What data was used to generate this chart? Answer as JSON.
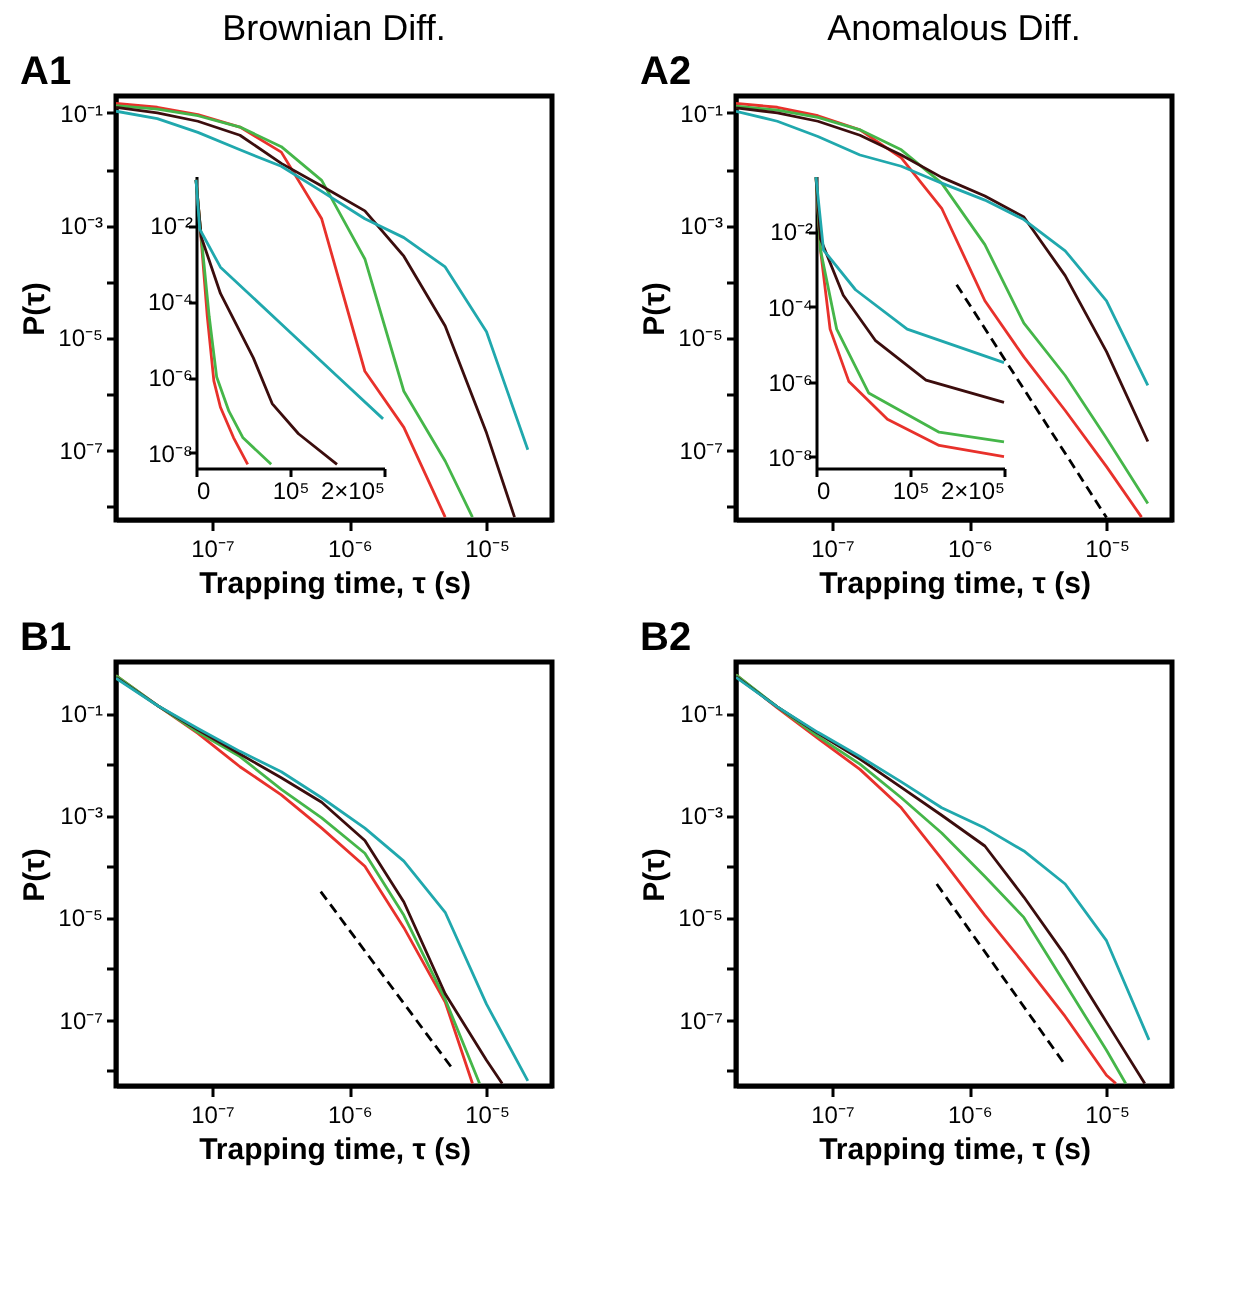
{
  "chart_data": [
    {
      "type": "line",
      "title": "Brownian Diff.",
      "annotations": [
        "A1"
      ],
      "xlabel": "Trapping time, τ (s)",
      "ylabel": "P(τ)",
      "log": "xy",
      "grid": false,
      "legend": false,
      "marker": "none",
      "line_style": "solid",
      "xlim": [
        2e-08,
        3e-05
      ],
      "ylim": [
        5.6e-09,
        0.2
      ],
      "xticks": [
        {
          "value": 1e-07,
          "label": "10⁻⁷"
        },
        {
          "value": 1e-06,
          "label": "10⁻⁶"
        },
        {
          "value": 1e-05,
          "label": "10⁻⁵"
        }
      ],
      "yticks": [
        {
          "value": 0.1,
          "label": "10⁻¹"
        },
        {
          "value": 0.01,
          "label": null
        },
        {
          "value": 0.001,
          "label": "10⁻³"
        },
        {
          "value": 0.0001,
          "label": null
        },
        {
          "value": 1e-05,
          "label": "10⁻⁵"
        },
        {
          "value": 1e-06,
          "label": null
        },
        {
          "value": 1e-07,
          "label": "10⁻⁷"
        },
        {
          "value": 1e-08,
          "label": null
        }
      ],
      "series": [
        {
          "color": "#e8312b",
          "x": [
            2e-08,
            4e-08,
            7.9e-08,
            1.6e-07,
            3.2e-07,
            6.3e-07,
            1.3e-06,
            2.5e-06,
            5e-06
          ],
          "values": [
            0.148,
            0.126,
            0.093,
            0.056,
            0.02,
            0.0013,
            2.5e-06,
            2.5e-07,
            6.3e-09
          ]
        },
        {
          "color": "#45b649",
          "x": [
            2e-08,
            4e-08,
            7.9e-08,
            1.6e-07,
            3.2e-07,
            6.3e-07,
            1.3e-06,
            2.5e-06,
            5e-06,
            7.9e-06
          ],
          "values": [
            0.135,
            0.117,
            0.089,
            0.056,
            0.025,
            0.0063,
            0.00025,
            1.1e-06,
            6.3e-08,
            6.3e-09
          ]
        },
        {
          "color": "#3b0d0d",
          "x": [
            2e-08,
            4e-08,
            7.9e-08,
            1.6e-07,
            3.2e-07,
            6.3e-07,
            1.3e-06,
            2.5e-06,
            5e-06,
            1e-05,
            1.6e-05
          ],
          "values": [
            0.126,
            0.1,
            0.071,
            0.04,
            0.0126,
            0.005,
            0.0018,
            0.00028,
            1.6e-05,
            2e-07,
            6.3e-09
          ]
        },
        {
          "color": "#20a8ad",
          "x": [
            2e-08,
            4e-08,
            7.9e-08,
            1.6e-07,
            3.2e-07,
            6.3e-07,
            1.3e-06,
            2.5e-06,
            5e-06,
            1e-05,
            2e-05
          ],
          "values": [
            0.107,
            0.079,
            0.045,
            0.022,
            0.0112,
            0.004,
            0.0013,
            0.0006,
            0.00018,
            1.26e-05,
            1e-07
          ]
        }
      ]
    },
    {
      "type": "line",
      "log": "y",
      "grid": false,
      "legend": false,
      "marker": "none",
      "line_style": "solid",
      "xlim": [
        0,
        200000
      ],
      "ylim": [
        4e-09,
        0.2
      ],
      "xticks": [
        0,
        {
          "value": 100000,
          "label": "10⁵"
        },
        {
          "value": 200000,
          "label": "2×10⁵"
        }
      ],
      "yticks": [
        {
          "value": 0.01,
          "label": "10⁻²"
        },
        {
          "value": 0.0001,
          "label": "10⁻⁴"
        },
        {
          "value": 1e-06,
          "label": "10⁻⁶"
        },
        {
          "value": 1e-08,
          "label": "10⁻⁸"
        }
      ],
      "series": [
        {
          "color": "#e8312b",
          "x": [
            0,
            4000,
            12000,
            19000,
            26000,
            40000,
            55000
          ],
          "values": [
            0.158,
            0.0126,
            4e-05,
            7.9e-07,
            1.6e-07,
            2.5e-08,
            5e-09
          ]
        },
        {
          "color": "#45b649",
          "x": [
            0,
            4000,
            14000,
            22000,
            35000,
            50000,
            80000
          ],
          "values": [
            0.158,
            0.0126,
            4e-05,
            1e-06,
            1.26e-07,
            2.5e-08,
            5e-09
          ]
        },
        {
          "color": "#3b0d0d",
          "x": [
            0,
            5500,
            26000,
            61000,
            81000,
            109000,
            150000
          ],
          "values": [
            0.158,
            0.005,
            0.00016,
            3.2e-06,
            2e-07,
            3.2e-08,
            5e-09
          ]
        },
        {
          "color": "#20a8ad",
          "x": [
            0,
            4000,
            26000,
            95000,
            150000,
            199000
          ],
          "values": [
            0.158,
            0.0079,
            0.00079,
            2e-05,
            1.07e-06,
            7.9e-08
          ]
        }
      ]
    },
    {
      "type": "line",
      "title": "Anomalous Diff.",
      "annotations": [
        "A2"
      ],
      "xlabel": "Trapping time, τ (s)",
      "ylabel": "P(τ)",
      "log": "xy",
      "grid": false,
      "legend": false,
      "marker": "none",
      "line_style": "solid",
      "xlim": [
        2e-08,
        3e-05
      ],
      "ylim": [
        5.6e-09,
        0.2
      ],
      "xticks": [
        {
          "value": 1e-07,
          "label": "10⁻⁷"
        },
        {
          "value": 1e-06,
          "label": "10⁻⁶"
        },
        {
          "value": 1e-05,
          "label": "10⁻⁵"
        }
      ],
      "yticks": [
        {
          "value": 0.1,
          "label": "10⁻¹"
        },
        {
          "value": 0.01,
          "label": null
        },
        {
          "value": 0.001,
          "label": "10⁻³"
        },
        {
          "value": 0.0001,
          "label": null
        },
        {
          "value": 1e-05,
          "label": "10⁻⁵"
        },
        {
          "value": 1e-06,
          "label": null
        },
        {
          "value": 1e-07,
          "label": "10⁻⁷"
        },
        {
          "value": 1e-08,
          "label": null
        }
      ],
      "series": [
        {
          "color": "#e8312b",
          "x": [
            2e-08,
            4e-08,
            7.9e-08,
            1.6e-07,
            3.2e-07,
            6.3e-07,
            1.3e-06,
            2.5e-06,
            5e-06,
            1e-05,
            1.8e-05
          ],
          "values": [
            0.148,
            0.126,
            0.089,
            0.05,
            0.0158,
            0.002,
            4.5e-05,
            4.5e-06,
            5e-07,
            5e-08,
            6.3e-09
          ]
        },
        {
          "color": "#45b649",
          "x": [
            2e-08,
            4e-08,
            7.9e-08,
            1.6e-07,
            3.2e-07,
            6.3e-07,
            1.3e-06,
            2.5e-06,
            5e-06,
            1e-05,
            2e-05
          ],
          "values": [
            0.132,
            0.112,
            0.083,
            0.05,
            0.022,
            0.0056,
            0.00045,
            1.8e-05,
            2.1e-06,
            1.6e-07,
            1.1e-08
          ]
        },
        {
          "color": "#3b0d0d",
          "x": [
            2e-08,
            4e-08,
            7.9e-08,
            1.6e-07,
            3.2e-07,
            6.3e-07,
            1.3e-06,
            2.5e-06,
            5e-06,
            1e-05,
            2e-05
          ],
          "values": [
            0.123,
            0.1,
            0.071,
            0.04,
            0.0178,
            0.0071,
            0.0033,
            0.0014,
            0.000126,
            5.6e-06,
            1.4e-07
          ]
        },
        {
          "color": "#20a8ad",
          "x": [
            2e-08,
            4e-08,
            7.9e-08,
            1.6e-07,
            3.2e-07,
            6.3e-07,
            1.3e-06,
            2.5e-06,
            5e-06,
            1e-05,
            2e-05
          ],
          "values": [
            0.107,
            0.071,
            0.038,
            0.0178,
            0.0112,
            0.0056,
            0.0028,
            0.00126,
            0.00035,
            4.5e-05,
            1.4e-06
          ]
        },
        {
          "color": "#000000",
          "line_style": "dashed",
          "x": [
            8.1e-07,
            1e-05
          ],
          "values": [
            8.7e-05,
            6.2e-09
          ]
        }
      ]
    },
    {
      "type": "line",
      "log": "y",
      "grid": false,
      "legend": false,
      "marker": "none",
      "line_style": "solid",
      "xlim": [
        0,
        200000
      ],
      "ylim": [
        5e-09,
        0.3
      ],
      "xticks": [
        0,
        {
          "value": 100000,
          "label": "10⁵"
        },
        {
          "value": 200000,
          "label": "2×10⁵"
        }
      ],
      "yticks": [
        {
          "value": 0.01,
          "label": "10⁻²"
        },
        {
          "value": 0.0001,
          "label": "10⁻⁴"
        },
        {
          "value": 1e-06,
          "label": "10⁻⁶"
        },
        {
          "value": 1e-08,
          "label": "10⁻⁸"
        }
      ],
      "series": [
        {
          "color": "#e8312b",
          "x": [
            0,
            4800,
            15000,
            35000,
            76000,
            131000,
            200000
          ],
          "values": [
            0.28,
            0.0032,
            2.5e-05,
            1e-06,
            1e-07,
            2e-08,
            1e-08
          ]
        },
        {
          "color": "#45b649",
          "x": [
            0,
            4800,
            22000,
            56000,
            131000,
            200000
          ],
          "values": [
            0.28,
            0.0032,
            2.5e-05,
            5e-07,
            4.5e-08,
            2.5e-08
          ]
        },
        {
          "color": "#3b0d0d",
          "x": [
            0,
            4800,
            29000,
            63000,
            117000,
            200000
          ],
          "values": [
            0.28,
            0.0063,
            0.0002,
            1.26e-05,
            1.1e-06,
            2.8e-07
          ]
        },
        {
          "color": "#20a8ad",
          "x": [
            0,
            8000,
            42000,
            97000,
            200000
          ],
          "values": [
            0.28,
            0.0032,
            0.00028,
            2.5e-05,
            3.2e-06
          ]
        }
      ]
    },
    {
      "type": "line",
      "annotations": [
        "B1"
      ],
      "xlabel": "Trapping time, τ (s)",
      "ylabel": "P(τ)",
      "log": "xy",
      "grid": false,
      "legend": false,
      "marker": "none",
      "line_style": "solid",
      "xlim": [
        2e-08,
        3e-05
      ],
      "ylim": [
        5e-09,
        1
      ],
      "xticks": [
        {
          "value": 1e-07,
          "label": "10⁻⁷"
        },
        {
          "value": 1e-06,
          "label": "10⁻⁶"
        },
        {
          "value": 1e-05,
          "label": "10⁻⁵"
        }
      ],
      "yticks": [
        {
          "value": 0.1,
          "label": "10⁻¹"
        },
        {
          "value": 0.01,
          "label": null
        },
        {
          "value": 0.001,
          "label": "10⁻³"
        },
        {
          "value": 0.0001,
          "label": null
        },
        {
          "value": 1e-05,
          "label": "10⁻⁵"
        },
        {
          "value": 1e-06,
          "label": null
        },
        {
          "value": 1e-07,
          "label": "10⁻⁷"
        },
        {
          "value": 1e-08,
          "label": null
        }
      ],
      "series": [
        {
          "color": "#e8312b",
          "x": [
            2e-08,
            4e-08,
            7.9e-08,
            1.6e-07,
            3.2e-07,
            6.3e-07,
            1.3e-06,
            2.5e-06,
            5e-06,
            7.9e-06
          ],
          "values": [
            0.54,
            0.141,
            0.04,
            0.0089,
            0.0025,
            0.00056,
            0.0001,
            6.3e-06,
            2.2e-07,
            5.6e-09
          ]
        },
        {
          "color": "#45b649",
          "x": [
            2e-08,
            4e-08,
            7.9e-08,
            1.6e-07,
            3.2e-07,
            6.3e-07,
            1.3e-06,
            2.5e-06,
            5e-06,
            8.9e-06
          ],
          "values": [
            0.54,
            0.141,
            0.042,
            0.0141,
            0.0032,
            0.00089,
            0.00018,
            1.1e-05,
            2.5e-07,
            5.6e-09
          ]
        },
        {
          "color": "#3b0d0d",
          "x": [
            2e-08,
            4e-08,
            7.9e-08,
            1.6e-07,
            3.2e-07,
            6.3e-07,
            1.3e-06,
            2.5e-06,
            5e-06,
            1e-05,
            1.3e-05
          ],
          "values": [
            0.5,
            0.141,
            0.047,
            0.0158,
            0.0054,
            0.0018,
            0.00032,
            2e-05,
            3.2e-07,
            1.6e-08,
            5.6e-09
          ]
        },
        {
          "color": "#20a8ad",
          "x": [
            2e-08,
            4e-08,
            7.9e-08,
            1.6e-07,
            3.2e-07,
            6.3e-07,
            1.3e-06,
            2.5e-06,
            5e-06,
            1e-05,
            2e-05
          ],
          "values": [
            0.48,
            0.141,
            0.05,
            0.0178,
            0.0071,
            0.0022,
            0.00056,
            0.000126,
            1.26e-05,
            2e-07,
            6.3e-09
          ]
        },
        {
          "color": "#000000",
          "line_style": "dashed",
          "x": [
            6.2e-07,
            5.5e-06
          ],
          "values": [
            3.2e-05,
            1.2e-08
          ]
        }
      ]
    },
    {
      "type": "line",
      "annotations": [
        "B2"
      ],
      "xlabel": "Trapping time, τ (s)",
      "ylabel": "P(τ)",
      "log": "xy",
      "grid": false,
      "legend": false,
      "marker": "none",
      "line_style": "solid",
      "xlim": [
        2e-08,
        3e-05
      ],
      "ylim": [
        5e-09,
        1
      ],
      "xticks": [
        {
          "value": 1e-07,
          "label": "10⁻⁷"
        },
        {
          "value": 1e-06,
          "label": "10⁻⁶"
        },
        {
          "value": 1e-05,
          "label": "10⁻⁵"
        }
      ],
      "yticks": [
        {
          "value": 0.1,
          "label": "10⁻¹"
        },
        {
          "value": 0.01,
          "label": null
        },
        {
          "value": 0.001,
          "label": "10⁻³"
        },
        {
          "value": 0.0001,
          "label": null
        },
        {
          "value": 1e-05,
          "label": "10⁻⁵"
        },
        {
          "value": 1e-06,
          "label": null
        },
        {
          "value": 1e-07,
          "label": "10⁻⁷"
        },
        {
          "value": 1e-08,
          "label": null
        }
      ],
      "series": [
        {
          "color": "#e8312b",
          "x": [
            2e-08,
            4e-08,
            7.9e-08,
            1.6e-07,
            3.2e-07,
            6.3e-07,
            1.3e-06,
            2.5e-06,
            5e-06,
            1e-05,
            1.17e-05
          ],
          "values": [
            0.56,
            0.126,
            0.032,
            0.0079,
            0.0014,
            0.00014,
            1.1e-05,
            1.26e-06,
            1.15e-07,
            8.1e-09,
            5.6e-09
          ]
        },
        {
          "color": "#45b649",
          "x": [
            2e-08,
            4e-08,
            7.9e-08,
            1.6e-07,
            3.2e-07,
            6.3e-07,
            1.3e-06,
            2.5e-06,
            5e-06,
            1e-05,
            1.38e-05
          ],
          "values": [
            0.56,
            0.132,
            0.035,
            0.01,
            0.0022,
            0.00045,
            6.3e-05,
            1e-05,
            5e-07,
            2.5e-08,
            5.6e-09
          ]
        },
        {
          "color": "#3b0d0d",
          "x": [
            2e-08,
            4e-08,
            7.9e-08,
            1.6e-07,
            3.2e-07,
            6.3e-07,
            1.3e-06,
            2.5e-06,
            5e-06,
            1e-05,
            1.9e-05
          ],
          "values": [
            0.52,
            0.132,
            0.04,
            0.0126,
            0.0035,
            0.001,
            0.00025,
            2.5e-05,
            1.8e-06,
            8.9e-08,
            5.6e-09
          ]
        },
        {
          "color": "#20a8ad",
          "x": [
            2e-08,
            4e-08,
            7.9e-08,
            1.6e-07,
            3.2e-07,
            6.3e-07,
            1.3e-06,
            2.5e-06,
            5e-06,
            1e-05,
            2.04e-05
          ],
          "values": [
            0.5,
            0.132,
            0.042,
            0.0141,
            0.0045,
            0.0014,
            0.00056,
            0.0002,
            4.5e-05,
            3.5e-06,
            4e-08
          ]
        },
        {
          "color": "#000000",
          "line_style": "dashed",
          "x": [
            5.8e-07,
            5.1e-06
          ],
          "values": [
            4.5e-05,
            1.2e-08
          ]
        }
      ]
    }
  ]
}
